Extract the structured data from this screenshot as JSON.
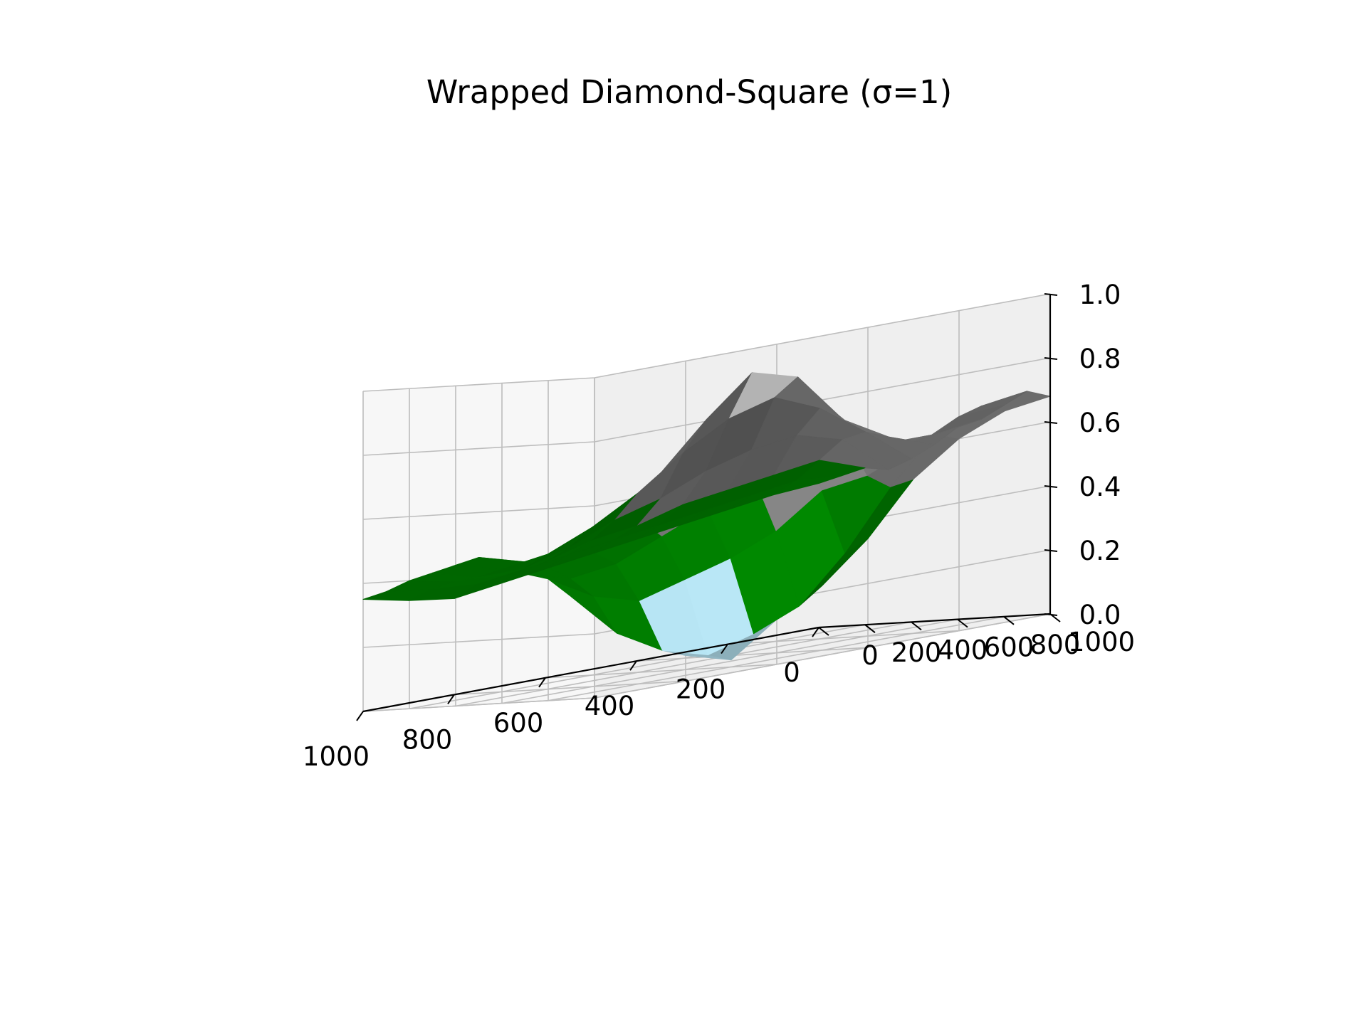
{
  "chart_data": {
    "type": "surface",
    "title": "Wrapped Diamond-Square (σ=1)",
    "xlabel": "",
    "ylabel": "",
    "zlabel": "",
    "x_ticks": [
      0,
      200,
      400,
      600,
      800,
      1000
    ],
    "y_ticks": [
      0,
      200,
      400,
      600,
      800,
      1000
    ],
    "z_ticks": [
      "0.0",
      "0.2",
      "0.4",
      "0.6",
      "0.8",
      "1.0"
    ],
    "xlim": [
      0,
      1000
    ],
    "ylim": [
      0,
      1000
    ],
    "zlim": [
      0,
      1
    ],
    "grid": true,
    "color_bands": [
      {
        "upper": 0.05,
        "color": "#0000ff"
      },
      {
        "upper": 0.2,
        "color": "#add8e6"
      },
      {
        "upper": 0.5,
        "color": "#008000"
      },
      {
        "upper": 0.8,
        "color": "#808080"
      },
      {
        "upper": 1.0,
        "color": "#ffffff"
      }
    ],
    "surface_rows": [
      [
        0.45,
        0.47,
        0.49,
        0.48,
        0.51,
        0.55,
        0.6,
        0.62,
        0.66,
        0.7,
        0.68
      ],
      [
        0.44,
        0.48,
        0.54,
        0.6,
        0.62,
        0.6,
        0.58,
        0.6,
        0.65,
        0.68,
        0.66
      ],
      [
        0.42,
        0.46,
        0.52,
        0.64,
        0.72,
        0.68,
        0.62,
        0.6,
        0.58,
        0.62,
        0.6
      ],
      [
        0.4,
        0.44,
        0.5,
        0.62,
        0.78,
        0.84,
        0.76,
        0.66,
        0.52,
        0.48,
        0.5
      ],
      [
        0.38,
        0.42,
        0.48,
        0.58,
        0.74,
        0.88,
        0.82,
        0.7,
        0.5,
        0.3,
        0.34
      ],
      [
        0.36,
        0.4,
        0.44,
        0.52,
        0.66,
        0.76,
        0.7,
        0.58,
        0.4,
        0.16,
        0.22
      ],
      [
        0.34,
        0.38,
        0.42,
        0.48,
        0.56,
        0.62,
        0.6,
        0.5,
        0.34,
        0.1,
        0.14
      ],
      [
        0.32,
        0.36,
        0.38,
        0.42,
        0.48,
        0.52,
        0.5,
        0.44,
        0.3,
        0.06,
        0.04
      ],
      [
        0.3,
        0.34,
        0.36,
        0.38,
        0.42,
        0.44,
        0.42,
        0.38,
        0.26,
        0.1,
        0.08
      ],
      [
        0.32,
        0.35,
        0.37,
        0.38,
        0.4,
        0.42,
        0.4,
        0.36,
        0.3,
        0.18,
        0.2
      ],
      [
        0.35,
        0.37,
        0.4,
        0.42,
        0.44,
        0.46,
        0.44,
        0.4,
        0.38,
        0.32,
        0.36
      ]
    ]
  }
}
